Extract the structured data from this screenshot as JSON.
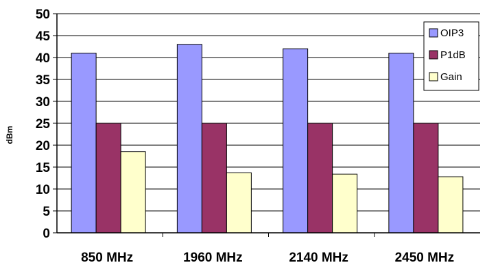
{
  "chart_data": {
    "type": "bar",
    "title": "",
    "xlabel": "",
    "ylabel": "dBm",
    "ylim": [
      0,
      50
    ],
    "yticks": [
      0,
      5,
      10,
      15,
      20,
      25,
      30,
      35,
      40,
      45,
      50
    ],
    "grid": "horizontal",
    "legend_position": "top-right",
    "categories": [
      "850 MHz",
      "1960 MHz",
      "2140 MHz",
      "2450 MHz"
    ],
    "series": [
      {
        "name": "OIP3",
        "color": "#9999ff",
        "values": [
          41,
          43,
          42,
          41
        ]
      },
      {
        "name": "P1dB",
        "color": "#993366",
        "values": [
          25,
          25,
          25,
          25
        ]
      },
      {
        "name": "Gain",
        "color": "#ffffcc",
        "values": [
          18.5,
          13.7,
          13.4,
          12.8
        ]
      }
    ]
  }
}
